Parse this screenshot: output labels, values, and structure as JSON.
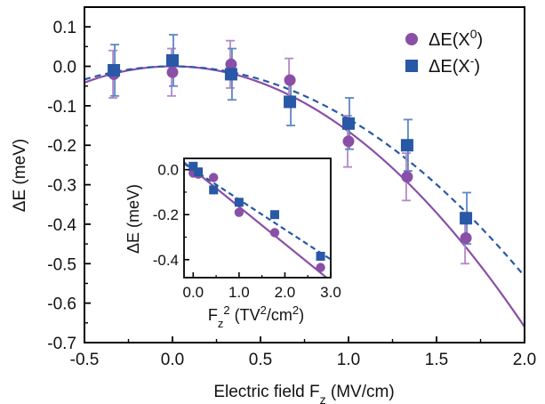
{
  "chart_data": [
    {
      "type": "scatter",
      "title": "",
      "xlabel": "Electric field F_z (MV/cm)",
      "ylabel": "ΔE (meV)",
      "xlim": [
        -0.5,
        2.0
      ],
      "ylim": [
        -0.7,
        0.15
      ],
      "x_ticks": [
        "-0.5",
        "0.0",
        "0.5",
        "1.0",
        "1.5",
        "2.0"
      ],
      "y_ticks": [
        "0.1",
        "0.0",
        "-0.1",
        "-0.2",
        "-0.3",
        "-0.4",
        "-0.5",
        "-0.6",
        "-0.7"
      ],
      "grid": false,
      "legend_position": "top-right",
      "series": [
        {
          "name": "ΔE(X⁰)",
          "marker": "circle",
          "color": "#8a4fa6",
          "fit_color": "#8a4fa6",
          "fit_style": "solid",
          "fit_curvature": -0.165,
          "x": [
            -0.333,
            0.0,
            0.333,
            0.667,
            1.0,
            1.333,
            1.667
          ],
          "y": [
            -0.02,
            -0.015,
            0.005,
            -0.035,
            -0.19,
            -0.28,
            -0.435
          ],
          "err": [
            0.06,
            0.06,
            0.06,
            0.055,
            0.065,
            0.06,
            0.065
          ]
        },
        {
          "name": "ΔE(X⁻)",
          "marker": "square",
          "color": "#2858a6",
          "fit_color": "#2858a6",
          "fit_style": "dashed",
          "fit_curvature": -0.133,
          "x": [
            -0.333,
            0.0,
            0.333,
            0.667,
            1.0,
            1.333,
            1.667
          ],
          "y": [
            -0.01,
            0.015,
            -0.02,
            -0.09,
            -0.145,
            -0.2,
            -0.385
          ],
          "err": [
            0.065,
            0.065,
            0.065,
            0.06,
            0.065,
            0.065,
            0.065
          ]
        }
      ]
    },
    {
      "type": "scatter",
      "title": "",
      "xlabel": "F_z² (TV²/cm²)",
      "ylabel": "ΔE (meV)",
      "xlim": [
        -0.2,
        3.0
      ],
      "ylim": [
        -0.48,
        0.05
      ],
      "x_ticks": [
        "0.0",
        "1.0",
        "2.0",
        "3.0"
      ],
      "y_ticks": [
        "0.0",
        "-0.2",
        "-0.4"
      ],
      "grid": false,
      "series": [
        {
          "name": "ΔE(X⁰)",
          "marker": "circle",
          "color": "#8a4fa6",
          "fit_style": "solid",
          "fit_slope": -0.165,
          "x": [
            0.0,
            0.111,
            0.444,
            1.0,
            1.778,
            2.778
          ],
          "y": [
            -0.015,
            -0.02,
            -0.035,
            -0.19,
            -0.28,
            -0.435
          ]
        },
        {
          "name": "ΔE(X⁻)",
          "marker": "square",
          "color": "#2858a6",
          "fit_style": "dashed",
          "fit_slope": -0.133,
          "x": [
            0.0,
            0.111,
            0.444,
            1.0,
            1.778,
            2.778
          ],
          "y": [
            0.015,
            -0.01,
            -0.09,
            -0.145,
            -0.2,
            -0.385
          ]
        }
      ]
    }
  ]
}
